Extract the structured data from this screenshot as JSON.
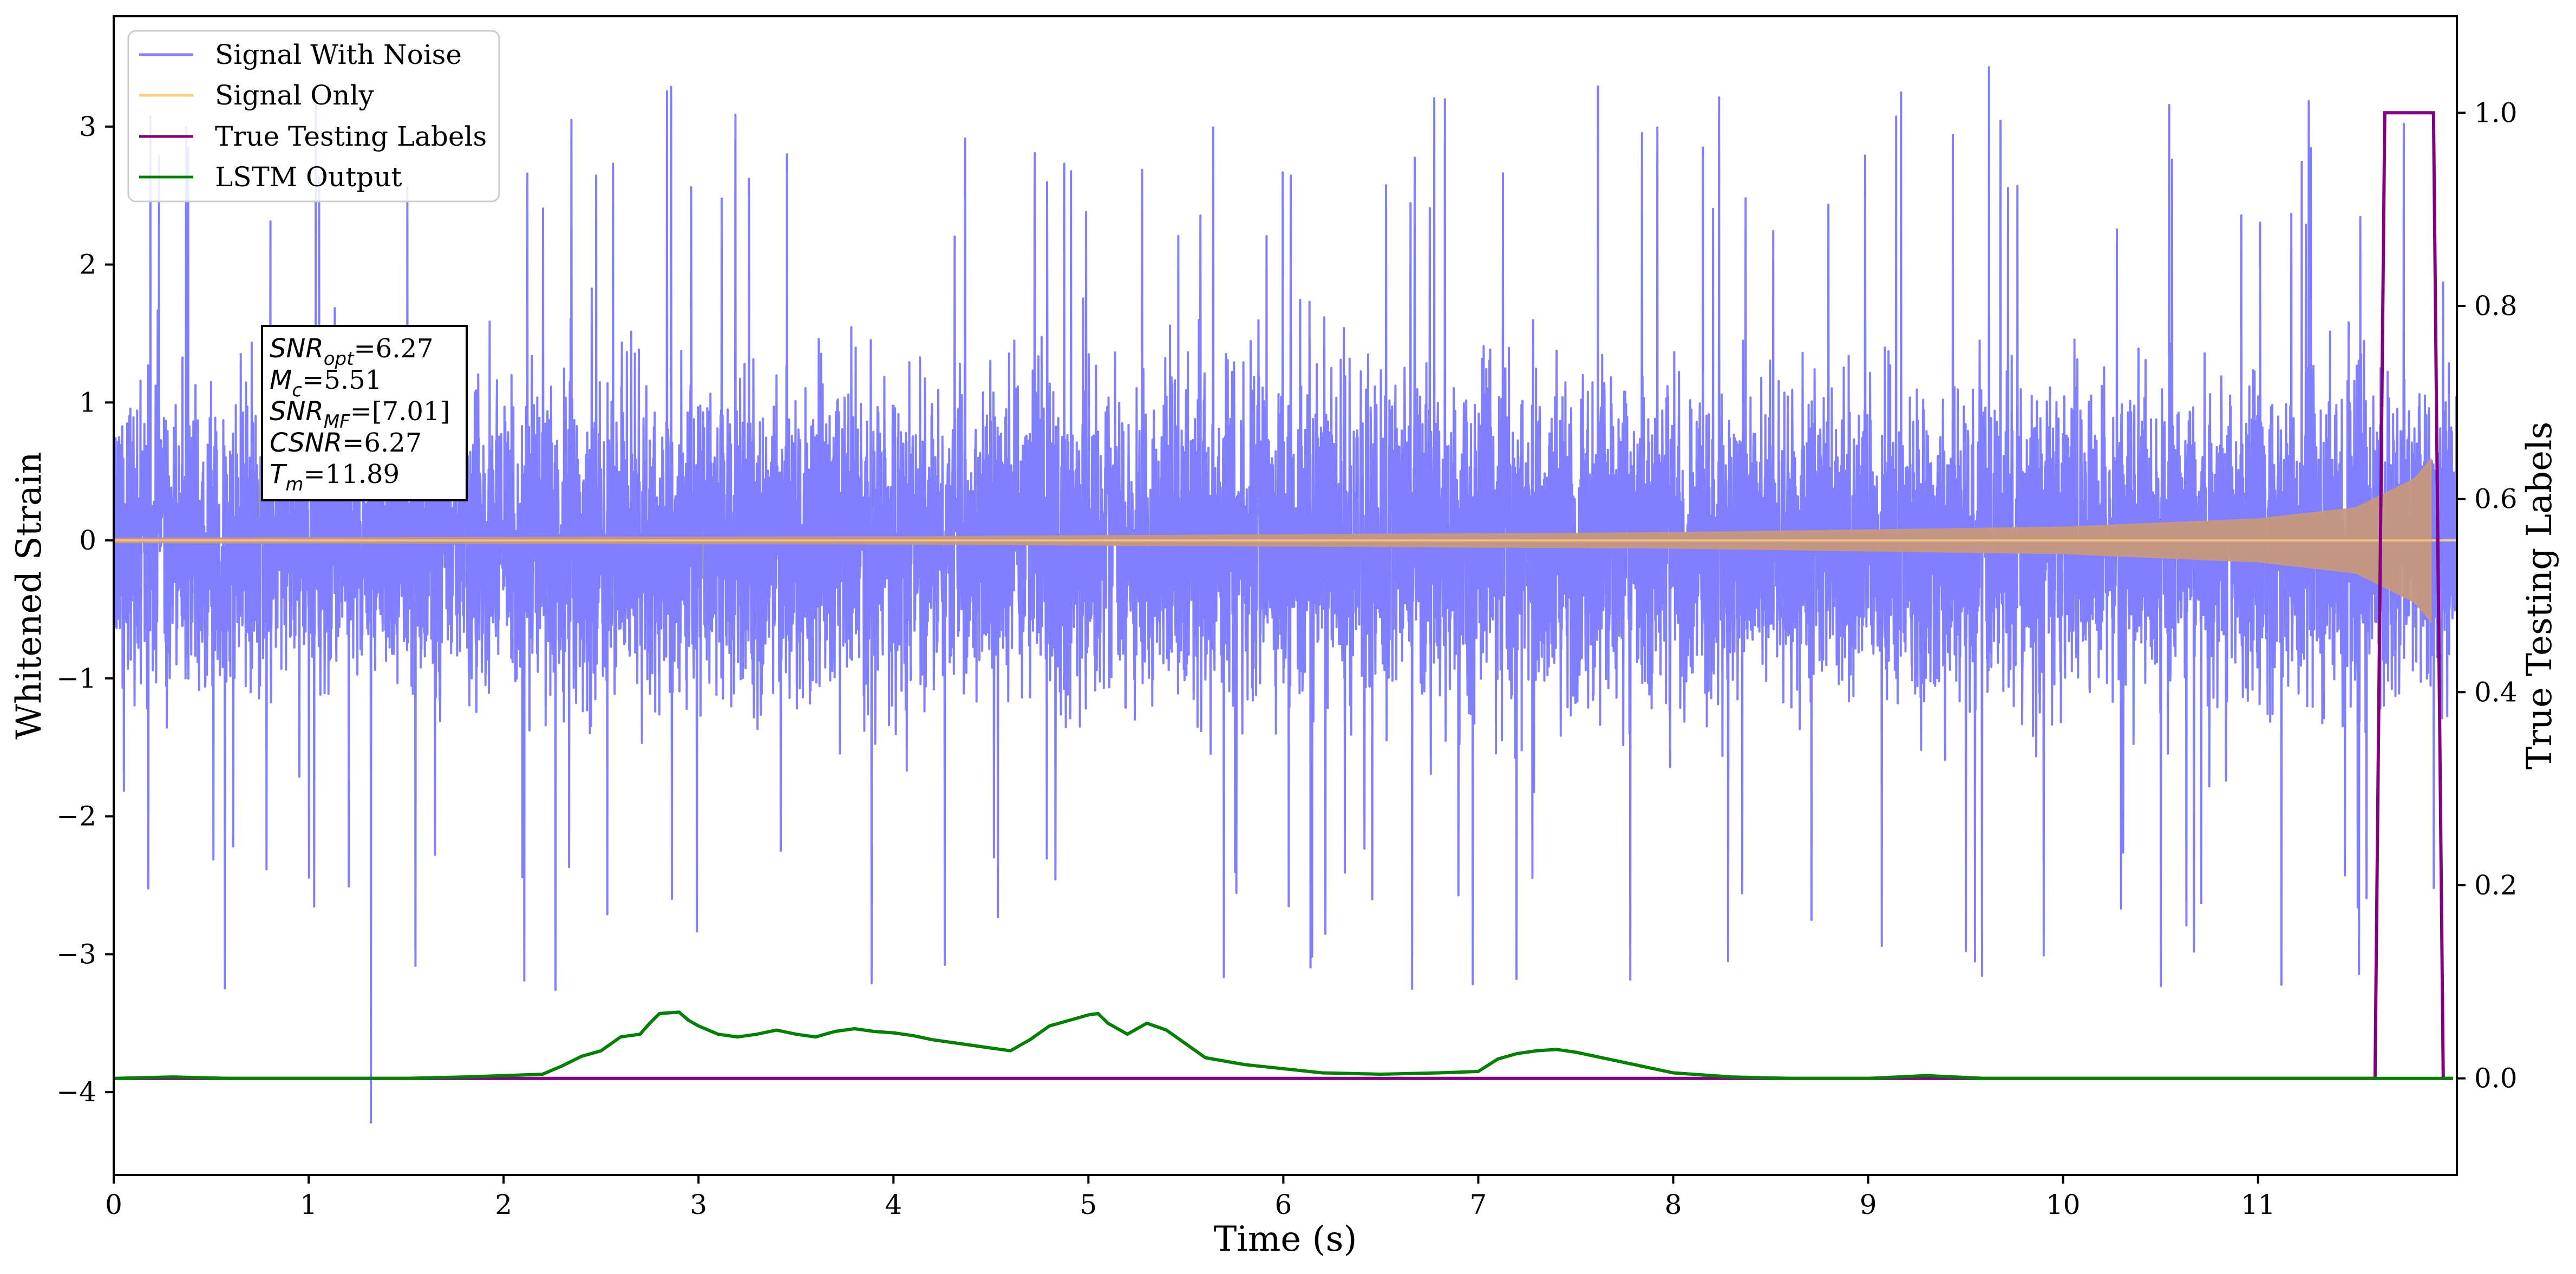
{
  "chart_data": {
    "type": "line",
    "xlabel": "Time (s)",
    "ylabel": "Whitened Strain",
    "y2label": "True Testing Labels",
    "xlim": [
      0,
      12.02
    ],
    "ylim": [
      -4.6,
      3.8
    ],
    "y2lim": [
      -0.1,
      1.1
    ],
    "xticks": [
      0,
      1,
      2,
      3,
      4,
      5,
      6,
      7,
      8,
      9,
      10,
      11
    ],
    "yticks": [
      -4,
      -3,
      -2,
      -1,
      0,
      1,
      2,
      3
    ],
    "y2ticks": [
      0.0,
      0.2,
      0.4,
      0.6,
      0.8,
      1.0
    ],
    "grid": false,
    "legend_position": "top-left",
    "legend": [
      "Signal With Noise",
      "Signal Only",
      "True Testing Labels",
      "LSTM Output"
    ],
    "colors": {
      "signal_with_noise": "#7f7fff",
      "signal_only": "#ffcc80",
      "signal_overlap": "#c89880",
      "true_labels": "#800080",
      "lstm": "#008000"
    },
    "annotation_lines": [
      {
        "name": "SNR",
        "sub": "opt",
        "value": "=6.27"
      },
      {
        "name": "M",
        "sub": "c",
        "value": "=5.51"
      },
      {
        "name": "SNR",
        "sub": "MF",
        "value": "=[7.01]"
      },
      {
        "name": "CSNR",
        "sub": "",
        "value": "=6.27"
      },
      {
        "name": "T",
        "sub": "m",
        "value": "=11.89"
      }
    ],
    "series": [
      {
        "name": "Signal With Noise",
        "axis": "left",
        "typical_peak_range": [
          1.0,
          3.45
        ],
        "extremes": {
          "max": 3.43,
          "max_at": 9.62,
          "min": -4.22,
          "min_at": 1.32
        }
      },
      {
        "name": "Signal Only",
        "axis": "left",
        "chirp_end_time": 11.89,
        "amplitude_envelope": {
          "x": [
            0,
            4,
            8,
            10,
            11,
            11.5,
            11.8,
            11.89
          ],
          "y": [
            0.02,
            0.03,
            0.06,
            0.1,
            0.16,
            0.24,
            0.45,
            0.6
          ]
        }
      },
      {
        "name": "True Testing Labels",
        "axis": "right",
        "x": [
          0,
          11.6,
          11.65,
          11.9,
          11.95,
          12.0
        ],
        "y": [
          0,
          0,
          1,
          1,
          0,
          0
        ]
      },
      {
        "name": "LSTM Output",
        "axis": "left",
        "x": [
          0,
          0.3,
          0.6,
          1.0,
          1.5,
          1.8,
          2.0,
          2.2,
          2.3,
          2.4,
          2.5,
          2.6,
          2.7,
          2.75,
          2.8,
          2.9,
          2.95,
          3.0,
          3.1,
          3.2,
          3.3,
          3.4,
          3.5,
          3.6,
          3.7,
          3.8,
          3.9,
          4.0,
          4.1,
          4.2,
          4.3,
          4.4,
          4.5,
          4.6,
          4.7,
          4.8,
          4.9,
          5.0,
          5.05,
          5.1,
          5.2,
          5.3,
          5.4,
          5.5,
          5.6,
          5.8,
          6.0,
          6.2,
          6.5,
          6.8,
          7.0,
          7.1,
          7.2,
          7.3,
          7.4,
          7.5,
          7.6,
          7.8,
          8.0,
          8.3,
          8.6,
          9.0,
          9.3,
          9.6,
          10.0,
          10.5,
          11.0,
          11.6,
          12.0
        ],
        "y": [
          -3.9,
          -3.89,
          -3.9,
          -3.9,
          -3.9,
          -3.89,
          -3.88,
          -3.87,
          -3.81,
          -3.74,
          -3.7,
          -3.6,
          -3.58,
          -3.5,
          -3.43,
          -3.42,
          -3.48,
          -3.52,
          -3.58,
          -3.6,
          -3.58,
          -3.55,
          -3.58,
          -3.6,
          -3.56,
          -3.54,
          -3.56,
          -3.57,
          -3.59,
          -3.62,
          -3.64,
          -3.66,
          -3.68,
          -3.7,
          -3.62,
          -3.52,
          -3.48,
          -3.44,
          -3.43,
          -3.5,
          -3.58,
          -3.5,
          -3.55,
          -3.65,
          -3.75,
          -3.8,
          -3.83,
          -3.86,
          -3.87,
          -3.86,
          -3.85,
          -3.76,
          -3.72,
          -3.7,
          -3.69,
          -3.71,
          -3.74,
          -3.8,
          -3.86,
          -3.89,
          -3.9,
          -3.9,
          -3.88,
          -3.9,
          -3.9,
          -3.9,
          -3.9,
          -3.9,
          -3.9
        ]
      }
    ]
  }
}
